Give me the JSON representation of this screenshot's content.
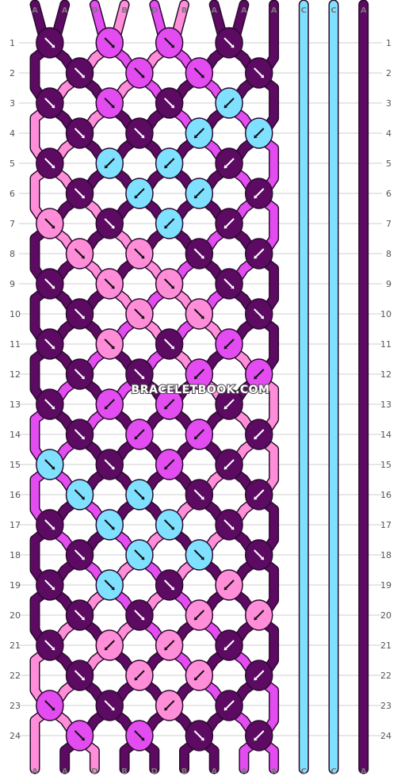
{
  "watermark": "BRACELETBOOK.COM",
  "colors": {
    "A": "#5c0a62",
    "B": "#ff8dd8",
    "C": "#80e0ff",
    "D": "#e24cf0"
  },
  "strands_top": [
    "A",
    "A",
    "D",
    "B",
    "D",
    "B",
    "A",
    "A",
    "A",
    "C",
    "C",
    "A"
  ],
  "strands_bottom": [
    "A",
    "A",
    "D",
    "B",
    "D",
    "B",
    "A",
    "A",
    "A",
    "C",
    "C",
    "A"
  ],
  "row_numbers": [
    "1",
    "2",
    "3",
    "4",
    "5",
    "6",
    "7",
    "8",
    "9",
    "10",
    "11",
    "12",
    "13",
    "14",
    "15",
    "16",
    "17",
    "18",
    "19",
    "20",
    "21",
    "22",
    "23",
    "24"
  ],
  "knot_rows": [
    [
      [
        "A",
        "se"
      ],
      [
        "D",
        "se"
      ],
      [
        "D",
        "se"
      ],
      [
        "A",
        "se"
      ]
    ],
    [
      [
        "A",
        "se"
      ],
      [
        "D",
        "se"
      ],
      [
        "D",
        "se"
      ],
      [
        "A",
        "se"
      ]
    ],
    [
      [
        "A",
        "se"
      ],
      [
        "D",
        "se"
      ],
      [
        "A",
        "se"
      ],
      [
        "C",
        "sw"
      ]
    ],
    [
      [
        "A",
        "se"
      ],
      [
        "A",
        "se"
      ],
      [
        "C",
        "sw"
      ],
      [
        "C",
        "sw"
      ]
    ],
    [
      [
        "A",
        "se"
      ],
      [
        "C",
        "sw"
      ],
      [
        "C",
        "sw"
      ],
      [
        "A",
        "sw"
      ]
    ],
    [
      [
        "A",
        "se"
      ],
      [
        "C",
        "sw"
      ],
      [
        "C",
        "sw"
      ],
      [
        "A",
        "sw"
      ]
    ],
    [
      [
        "B",
        "se"
      ],
      [
        "A",
        "se"
      ],
      [
        "C",
        "sw"
      ],
      [
        "A",
        "sw"
      ]
    ],
    [
      [
        "B",
        "se"
      ],
      [
        "B",
        "se"
      ],
      [
        "A",
        "se"
      ],
      [
        "A",
        "sw"
      ]
    ],
    [
      [
        "A",
        "se"
      ],
      [
        "B",
        "se"
      ],
      [
        "B",
        "se"
      ],
      [
        "A",
        "se"
      ]
    ],
    [
      [
        "A",
        "se"
      ],
      [
        "B",
        "se"
      ],
      [
        "B",
        "se"
      ],
      [
        "A",
        "se"
      ]
    ],
    [
      [
        "A",
        "se"
      ],
      [
        "B",
        "se"
      ],
      [
        "A",
        "se"
      ],
      [
        "D",
        "sw"
      ]
    ],
    [
      [
        "A",
        "se"
      ],
      [
        "A",
        "se"
      ],
      [
        "D",
        "sw"
      ],
      [
        "D",
        "sw"
      ]
    ],
    [
      [
        "A",
        "se"
      ],
      [
        "D",
        "sw"
      ],
      [
        "D",
        "sw"
      ],
      [
        "A",
        "sw"
      ]
    ],
    [
      [
        "A",
        "se"
      ],
      [
        "D",
        "sw"
      ],
      [
        "D",
        "sw"
      ],
      [
        "A",
        "sw"
      ]
    ],
    [
      [
        "C",
        "se"
      ],
      [
        "A",
        "se"
      ],
      [
        "D",
        "sw"
      ],
      [
        "A",
        "sw"
      ]
    ],
    [
      [
        "C",
        "se"
      ],
      [
        "C",
        "se"
      ],
      [
        "A",
        "se"
      ],
      [
        "A",
        "sw"
      ]
    ],
    [
      [
        "A",
        "se"
      ],
      [
        "C",
        "se"
      ],
      [
        "C",
        "se"
      ],
      [
        "A",
        "se"
      ]
    ],
    [
      [
        "A",
        "se"
      ],
      [
        "C",
        "se"
      ],
      [
        "C",
        "se"
      ],
      [
        "A",
        "se"
      ]
    ],
    [
      [
        "A",
        "se"
      ],
      [
        "C",
        "se"
      ],
      [
        "A",
        "se"
      ],
      [
        "B",
        "sw"
      ]
    ],
    [
      [
        "A",
        "se"
      ],
      [
        "A",
        "se"
      ],
      [
        "B",
        "sw"
      ],
      [
        "B",
        "sw"
      ]
    ],
    [
      [
        "A",
        "se"
      ],
      [
        "B",
        "sw"
      ],
      [
        "B",
        "sw"
      ],
      [
        "A",
        "sw"
      ]
    ],
    [
      [
        "A",
        "se"
      ],
      [
        "B",
        "sw"
      ],
      [
        "B",
        "sw"
      ],
      [
        "A",
        "sw"
      ]
    ],
    [
      [
        "D",
        "se"
      ],
      [
        "A",
        "se"
      ],
      [
        "B",
        "sw"
      ],
      [
        "A",
        "sw"
      ]
    ],
    [
      [
        "D",
        "se"
      ],
      [
        "D",
        "se"
      ],
      [
        "A",
        "se"
      ],
      [
        "A",
        "sw"
      ]
    ]
  ]
}
